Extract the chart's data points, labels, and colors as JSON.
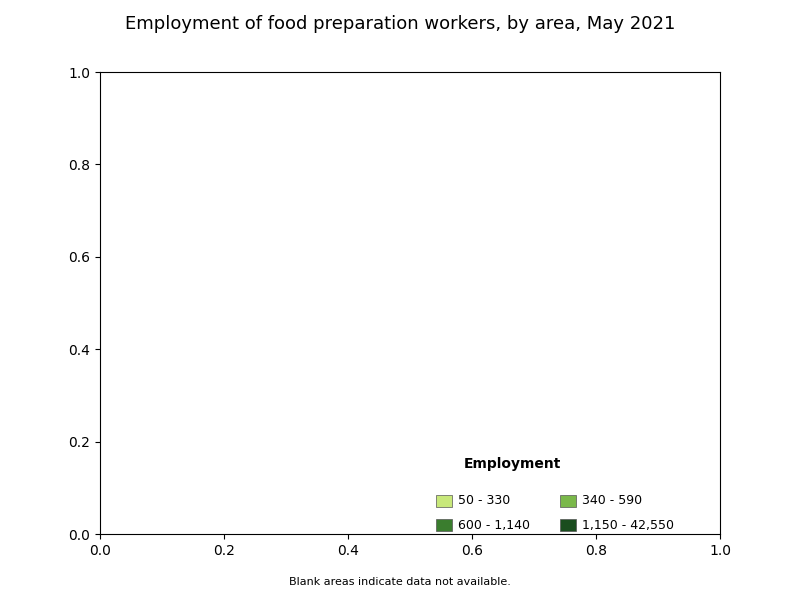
{
  "title": "Employment of food preparation workers, by area, May 2021",
  "title_fontsize": 13,
  "legend_title": "Employment",
  "legend_title_fontsize": 10,
  "legend_fontsize": 9,
  "legend_colors": [
    "#c8e87a",
    "#7ab84a",
    "#3a7d2e",
    "#1a4d1e"
  ],
  "legend_labels": [
    "50 - 330",
    "340 - 590",
    "600 - 1,140",
    "1,150 - 42,550"
  ],
  "blank_note": "Blank areas indicate data not available.",
  "background_color": "#ffffff",
  "edge_color": "#222222",
  "edge_linewidth": 0.3,
  "figsize": [
    8.0,
    6.0
  ],
  "dpi": 100,
  "state_colors": {
    "Washington": "#7ab84a",
    "Oregon": "#c8e87a",
    "California": "#3a7d2e",
    "Nevada": "#3a7d2e",
    "Idaho": "#c8e87a",
    "Montana": "#c8e87a",
    "Wyoming": "#c8e87a",
    "Utah": "#7ab84a",
    "Colorado": "#3a7d2e",
    "Arizona": "#3a7d2e",
    "New Mexico": "#7ab84a",
    "North Dakota": "#c8e87a",
    "South Dakota": "#c8e87a",
    "Nebraska": "#c8e87a",
    "Kansas": "#7ab84a",
    "Oklahoma": "#7ab84a",
    "Texas": "#3a7d2e",
    "Minnesota": "#7ab84a",
    "Iowa": "#7ab84a",
    "Missouri": "#3a7d2e",
    "Wisconsin": "#7ab84a",
    "Illinois": "#3a7d2e",
    "Michigan": "#3a7d2e",
    "Indiana": "#3a7d2e",
    "Ohio": "#3a7d2e",
    "Arkansas": "#7ab84a",
    "Louisiana": "#3a7d2e",
    "Mississippi": "#7ab84a",
    "Alabama": "#3a7d2e",
    "Tennessee": "#3a7d2e",
    "Kentucky": "#7ab84a",
    "West Virginia": "#c8e87a",
    "Virginia": "#3a7d2e",
    "North Carolina": "#3a7d2e",
    "South Carolina": "#3a7d2e",
    "Georgia": "#3a7d2e",
    "Florida": "#3a7d2e",
    "Pennsylvania": "#3a7d2e",
    "New York": "#1a4d1e",
    "New Jersey": "#3a7d2e",
    "Delaware": "#c8e87a",
    "Maryland": "#3a7d2e",
    "Connecticut": "#3a7d2e",
    "Rhode Island": "#7ab84a",
    "Massachusetts": "#3a7d2e",
    "Vermont": "#c8e87a",
    "New Hampshire": "#c8e87a",
    "Maine": "#7ab84a",
    "Alaska": "#3a7d2e",
    "Hawaii": "#7ab84a",
    "District of Columbia": "#1a4d1e"
  }
}
